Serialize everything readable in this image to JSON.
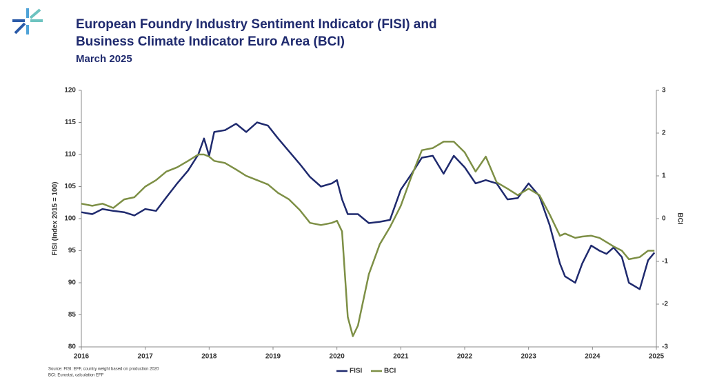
{
  "chart_data": {
    "type": "line",
    "title_lines": [
      "European Foundry Industry Sentiment Indicator (FISI) and",
      "Business Climate Indicator Euro Area (BCI)"
    ],
    "subtitle": "March 2025",
    "ylabel": "FISI (Index 2015 = 100)",
    "y2label": "BCI",
    "notes": [
      "Source: FISI: EFF, country weight based on production 2020",
      "BCI: Eurostat, calculation EFF"
    ],
    "xlim": [
      2016,
      2025
    ],
    "xticks": [
      2016,
      2017,
      2018,
      2019,
      2020,
      2021,
      2022,
      2023,
      2024,
      2025
    ],
    "ylim": [
      80,
      120
    ],
    "yticks": [
      80,
      85,
      90,
      95,
      100,
      105,
      110,
      115,
      120
    ],
    "y2lim": [
      -3,
      3
    ],
    "y2ticks": [
      -3,
      -2,
      -1,
      0,
      1,
      2,
      3
    ],
    "grid": false,
    "legend": "bottom",
    "x": [
      2016.0,
      2016.17,
      2016.33,
      2016.5,
      2016.67,
      2016.83,
      2017.0,
      2017.17,
      2017.33,
      2017.5,
      2017.67,
      2017.83,
      2017.92,
      2018.0,
      2018.08,
      2018.25,
      2018.42,
      2018.58,
      2018.75,
      2018.92,
      2019.08,
      2019.25,
      2019.42,
      2019.58,
      2019.75,
      2019.92,
      2020.0,
      2020.08,
      2020.17,
      2020.25,
      2020.33,
      2020.5,
      2020.67,
      2020.83,
      2021.0,
      2021.17,
      2021.33,
      2021.5,
      2021.67,
      2021.83,
      2022.0,
      2022.17,
      2022.33,
      2022.5,
      2022.67,
      2022.83,
      2023.0,
      2023.17,
      2023.33,
      2023.49,
      2023.57,
      2023.73,
      2023.84,
      2023.98,
      2024.11,
      2024.22,
      2024.33,
      2024.46,
      2024.57,
      2024.74,
      2024.87,
      2024.97
    ],
    "series": [
      {
        "name": "FISI",
        "color": "#1f2a6e",
        "axis": "y",
        "values": [
          101,
          100.7,
          101.5,
          101.2,
          101,
          100.5,
          101.5,
          101.2,
          103.3,
          105.5,
          107.5,
          110,
          112.5,
          109.8,
          113.5,
          113.8,
          114.8,
          113.5,
          115,
          114.5,
          112.5,
          110.5,
          108.5,
          106.5,
          105,
          105.5,
          106,
          103,
          100.7,
          100.7,
          100.7,
          99.3,
          99.5,
          99.8,
          104.5,
          107,
          109.5,
          109.8,
          107,
          109.8,
          108,
          105.5,
          106,
          105.5,
          103,
          103.2,
          105.5,
          103.5,
          99,
          93,
          91,
          90,
          93,
          95.8,
          95,
          94.5,
          95.5,
          94,
          90,
          89,
          93.5,
          94.7
        ]
      },
      {
        "name": "BCI",
        "color": "#7d8f45",
        "axis": "y2",
        "values": [
          0.35,
          0.3,
          0.35,
          0.25,
          0.45,
          0.5,
          0.75,
          0.9,
          1.1,
          1.2,
          1.35,
          1.5,
          1.5,
          1.45,
          1.35,
          1.3,
          1.15,
          1.0,
          0.9,
          0.8,
          0.6,
          0.45,
          0.2,
          -0.1,
          -0.15,
          -0.1,
          -0.05,
          -0.3,
          -2.3,
          -2.75,
          -2.5,
          -1.3,
          -0.6,
          -0.2,
          0.3,
          1.0,
          1.6,
          1.65,
          1.8,
          1.8,
          1.55,
          1.1,
          1.45,
          0.85,
          0.7,
          0.55,
          0.7,
          0.55,
          0.1,
          -0.4,
          -0.35,
          -0.45,
          -0.42,
          -0.4,
          -0.45,
          -0.55,
          -0.65,
          -0.75,
          -0.95,
          -0.9,
          -0.75,
          -0.75
        ]
      }
    ]
  }
}
